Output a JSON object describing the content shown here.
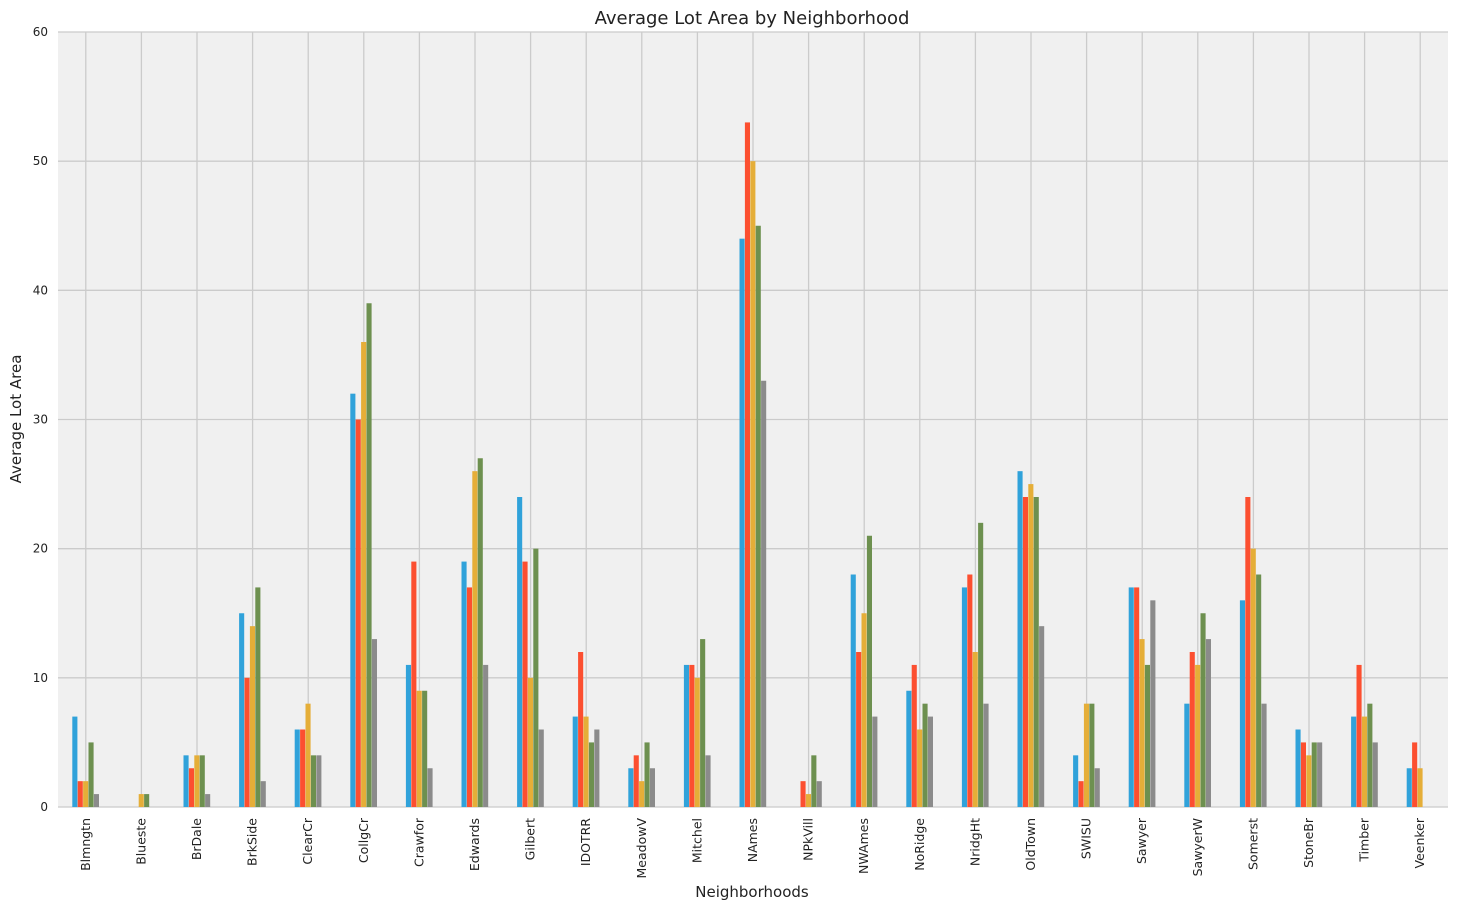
{
  "chart_data": {
    "type": "bar",
    "title": "Average Lot Area by Neighborhood",
    "xlabel": "Neighborhoods",
    "ylabel": "Average Lot Area",
    "ylim": [
      0,
      60
    ],
    "yticks": [
      0,
      10,
      20,
      30,
      40,
      50,
      60
    ],
    "grid": true,
    "legend": "none",
    "categories": [
      "Blmngtn",
      "Blueste",
      "BrDale",
      "BrkSide",
      "ClearCr",
      "CollgCr",
      "Crawfor",
      "Edwards",
      "Gilbert",
      "IDOTRR",
      "MeadowV",
      "Mitchel",
      "NAmes",
      "NPkVill",
      "NWAmes",
      "NoRidge",
      "NridgHt",
      "OldTown",
      "SWISU",
      "Sawyer",
      "SawyerW",
      "Somerst",
      "StoneBr",
      "Timber",
      "Veenker"
    ],
    "series": [
      {
        "color": "#30a2da",
        "values": [
          7,
          0,
          4,
          15,
          6,
          32,
          11,
          19,
          24,
          7,
          3,
          11,
          44,
          0,
          18,
          9,
          17,
          26,
          4,
          17,
          8,
          16,
          6,
          7,
          3
        ]
      },
      {
        "color": "#fc4f30",
        "values": [
          2,
          0,
          3,
          10,
          6,
          30,
          19,
          17,
          19,
          12,
          4,
          11,
          53,
          2,
          12,
          11,
          18,
          24,
          2,
          17,
          12,
          24,
          5,
          11,
          5
        ]
      },
      {
        "color": "#e5ae38",
        "values": [
          2,
          1,
          4,
          14,
          8,
          36,
          9,
          26,
          10,
          7,
          2,
          10,
          50,
          1,
          15,
          6,
          12,
          25,
          8,
          13,
          11,
          20,
          4,
          7,
          3
        ]
      },
      {
        "color": "#6d904f",
        "values": [
          5,
          1,
          4,
          17,
          4,
          39,
          9,
          27,
          20,
          5,
          5,
          13,
          45,
          4,
          21,
          8,
          22,
          24,
          8,
          11,
          15,
          18,
          5,
          8,
          0
        ]
      },
      {
        "color": "#8b8b8b",
        "values": [
          1,
          0,
          1,
          2,
          4,
          13,
          3,
          11,
          6,
          6,
          3,
          4,
          33,
          2,
          7,
          7,
          8,
          14,
          3,
          16,
          13,
          8,
          5,
          5,
          0
        ]
      }
    ]
  },
  "style": {
    "plot_bg": "#f0f0f0",
    "grid_color": "#cbcbcb",
    "text_color": "#222222"
  }
}
